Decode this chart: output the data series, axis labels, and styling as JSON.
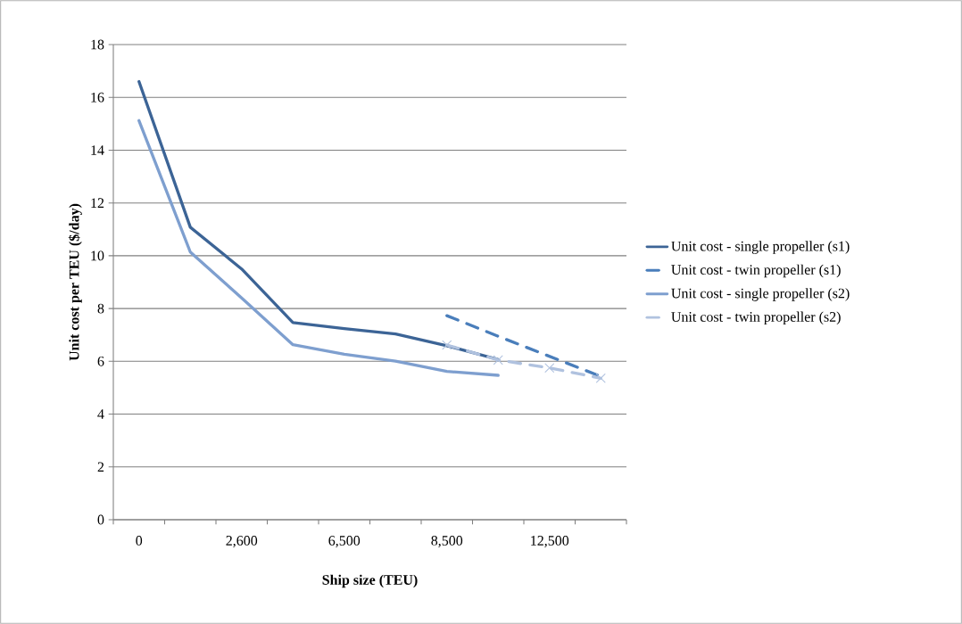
{
  "chart_data": {
    "type": "line",
    "xlabel": "Ship size (TEU)",
    "ylabel": "Unit cost per TEU ($/day)",
    "categories": [
      "0",
      null,
      "2,600",
      null,
      "6,500",
      null,
      "8,500",
      null,
      "12,500",
      null
    ],
    "ylim": [
      0,
      18
    ],
    "yticks": [
      0,
      2,
      4,
      6,
      8,
      10,
      12,
      14,
      16,
      18
    ],
    "grid": "y",
    "legend": "right",
    "series": [
      {
        "name": "Unit cost - single propeller (s1)",
        "color": "#3c6496",
        "line_style": "solid",
        "values": [
          16.6,
          11.08,
          9.5,
          7.47,
          7.24,
          7.04,
          6.59,
          6.07,
          null,
          null
        ]
      },
      {
        "name": "Unit cost - twin propeller (s1)",
        "color": "#4a7ebb",
        "line_style": "dashed",
        "values": [
          null,
          null,
          null,
          null,
          null,
          null,
          7.73,
          6.95,
          6.19,
          5.43
        ]
      },
      {
        "name": "Unit cost - single propeller (s2)",
        "color": "#7e9fcf",
        "line_style": "solid",
        "values": [
          15.12,
          10.14,
          8.4,
          6.63,
          6.27,
          6.01,
          5.62,
          5.47,
          null,
          null
        ]
      },
      {
        "name": "Unit cost - twin propeller (s2)",
        "color": "#b0c2df",
        "line_style": "dashed",
        "marker": "cross",
        "values": [
          null,
          null,
          null,
          null,
          null,
          null,
          6.62,
          6.05,
          5.75,
          5.36
        ]
      }
    ]
  }
}
